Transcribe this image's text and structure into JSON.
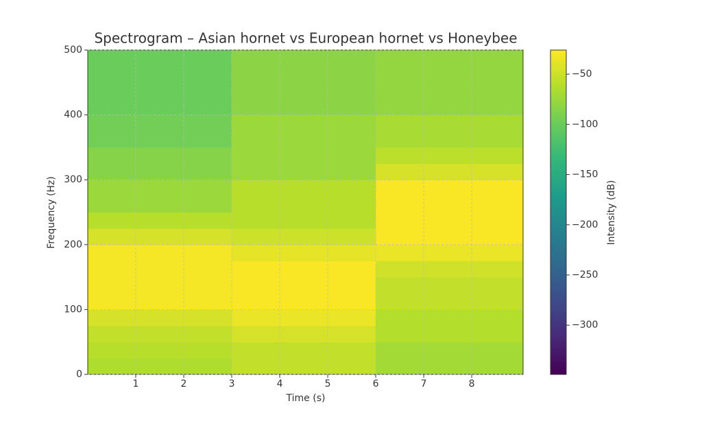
{
  "chart_data": {
    "type": "heatmap",
    "title": "Spectrogram – Asian hornet vs European hornet vs Honeybee",
    "x_label": "Time (s)",
    "y_label": "Frequency (Hz)",
    "colorbar_label": "Intensity (dB)",
    "x": [
      0,
      3,
      6,
      9.07
    ],
    "y": [
      0,
      25,
      50,
      75,
      100,
      125,
      150,
      175,
      200,
      225,
      250,
      275,
      300,
      325,
      350,
      375,
      400,
      425,
      450,
      475,
      500
    ],
    "values": [
      [
        -65,
        -60,
        -55,
        -45,
        -30,
        -30,
        -30,
        -30,
        -45,
        -60,
        -75,
        -75,
        -85,
        -85,
        -95,
        -95,
        -100,
        -100,
        -100,
        -100
      ],
      [
        -55,
        -55,
        -45,
        -35,
        -28,
        -28,
        -28,
        -38,
        -50,
        -60,
        -60,
        -60,
        -75,
        -75,
        -75,
        -75,
        -82,
        -82,
        -82,
        -82
      ],
      [
        -70,
        -70,
        -62,
        -62,
        -55,
        -55,
        -48,
        -35,
        -28,
        -28,
        -28,
        -28,
        -45,
        -58,
        -68,
        -68,
        -78,
        -78,
        -78,
        -78
      ]
    ],
    "xlim": [
      0,
      9.07
    ],
    "ylim": [
      0,
      500
    ],
    "clim": [
      -349,
      -26
    ],
    "xticks": [
      1,
      2,
      3,
      4,
      5,
      6,
      7,
      8
    ],
    "yticks": [
      0,
      100,
      200,
      300,
      400,
      500
    ],
    "cticks": [
      {
        "value": -50,
        "label": "−50"
      },
      {
        "value": -100,
        "label": "−100"
      },
      {
        "value": -150,
        "label": "−150"
      },
      {
        "value": -200,
        "label": "−200"
      },
      {
        "value": -250,
        "label": "−250"
      },
      {
        "value": -300,
        "label": "−300"
      }
    ],
    "colormap": "viridis",
    "grid": true
  }
}
